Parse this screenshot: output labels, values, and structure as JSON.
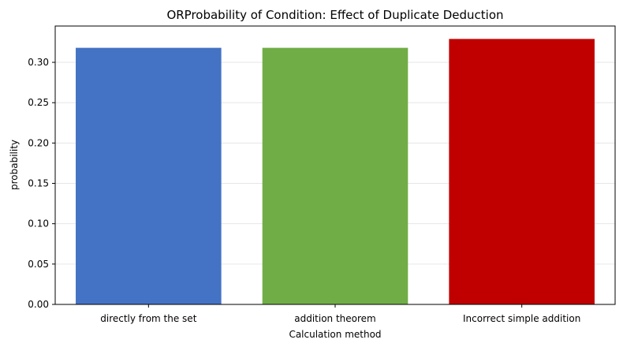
{
  "chart_data": {
    "type": "bar",
    "title": "ORProbability of Condition: Effect of Duplicate Deduction",
    "xlabel": "Calculation method",
    "ylabel": "probability",
    "categories": [
      "directly from the set",
      "addition theorem",
      "Incorrect simple addition"
    ],
    "values": [
      0.318,
      0.318,
      0.329
    ],
    "colors": [
      "#4472c4",
      "#70ad47",
      "#c00000"
    ],
    "ylim": [
      0,
      0.345
    ],
    "yticks": [
      0.0,
      0.05,
      0.1,
      0.15,
      0.2,
      0.25,
      0.3
    ],
    "ytick_labels": [
      "0.00",
      "0.05",
      "0.10",
      "0.15",
      "0.20",
      "0.25",
      "0.30"
    ],
    "grid": true,
    "legend": "none"
  }
}
